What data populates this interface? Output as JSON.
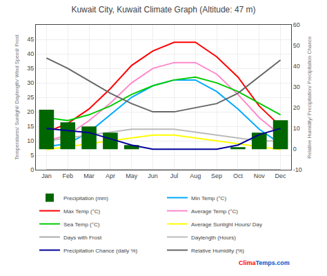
{
  "chart_data": {
    "type": "line",
    "title": "Kuwait City, Kuwait Climate Graph (Altitude: 47 m)",
    "categories": [
      "Jan",
      "Feb",
      "Mar",
      "Apr",
      "May",
      "Jun",
      "Jul",
      "Aug",
      "Sep",
      "Oct",
      "Nov",
      "Dec"
    ],
    "y_label": "Temperatures/ Sunlight/ Daylength/ Wind Speed/ Frost",
    "y2_label": "Relative Humidity/ Precipitation/ Precipitation Chance",
    "series": [
      {
        "name": "Precipitation (mm)",
        "type": "bar",
        "axis": "y2",
        "color": "#006600",
        "values": [
          19,
          13,
          11,
          8,
          2,
          0,
          0,
          0,
          0,
          1,
          8,
          14
        ]
      },
      {
        "name": "Min Temp (°C)",
        "type": "line",
        "color": "#00aaff",
        "values": [
          8,
          9,
          13,
          19,
          25,
          29,
          31,
          31,
          27,
          21,
          14,
          9
        ]
      },
      {
        "name": "Max Temp (°C)",
        "type": "line",
        "color": "#ff0000",
        "values": [
          13,
          16,
          21,
          28,
          36,
          41,
          44,
          44,
          39,
          32,
          22,
          15
        ]
      },
      {
        "name": "Average Temp (°C)",
        "type": "line",
        "color": "#ff88cc",
        "values": [
          10,
          12,
          17,
          23,
          30,
          35,
          37,
          37,
          33,
          26,
          18,
          12
        ]
      },
      {
        "name": "Sea Temp (°C)",
        "type": "line",
        "color": "#00cc00",
        "values": [
          18,
          17,
          19,
          22,
          26,
          29,
          31,
          32,
          30,
          27,
          23,
          19
        ]
      },
      {
        "name": "Average Sunlight Hours/ Day",
        "type": "line",
        "color": "#ffff00",
        "values": [
          7,
          8,
          9,
          10,
          11,
          12,
          12,
          11,
          10,
          9,
          8,
          7
        ]
      },
      {
        "name": "Days with Frost",
        "type": "line",
        "color": "#aaaaaa",
        "values": [
          0,
          0,
          0,
          0,
          0,
          0,
          0,
          0,
          0,
          0,
          0,
          0
        ]
      },
      {
        "name": "Daylength (Hours)",
        "type": "line",
        "color": "#bbbbbb",
        "values": [
          10,
          11,
          12,
          13,
          14,
          14,
          14,
          13,
          12,
          11,
          10,
          10
        ]
      },
      {
        "name": "Precipitation Chance (daily %)",
        "type": "line",
        "axis": "y2",
        "color": "#000099",
        "values": [
          10,
          9,
          8,
          5,
          2,
          0,
          0,
          0,
          0,
          2,
          7,
          10
        ]
      },
      {
        "name": "Relative Humidity (%)",
        "type": "line",
        "axis": "y2",
        "color": "#666666",
        "values": [
          44,
          39,
          33,
          27,
          22,
          18,
          18,
          20,
          22,
          27,
          35,
          43
        ]
      }
    ],
    "ylim": [
      0,
      50
    ],
    "yticks": [
      0,
      5,
      10,
      15,
      20,
      25,
      30,
      35,
      40,
      45
    ],
    "y2lim": [
      -10,
      60
    ],
    "y2ticks": [
      -10,
      0,
      10,
      20,
      30,
      40,
      50,
      60
    ],
    "grid": true,
    "legend": "bottom",
    "annotations": [
      {
        "text": "Clima",
        "color": "#ff0000"
      },
      {
        "text": "Temps",
        "color": "#0055cc"
      },
      {
        "text": ".com",
        "color": "#0055cc"
      }
    ]
  }
}
